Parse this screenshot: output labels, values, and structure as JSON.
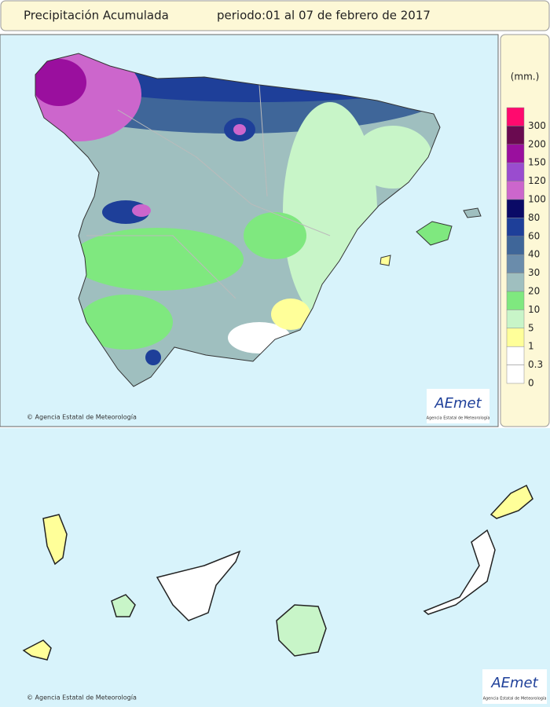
{
  "header": {
    "title": "Precipitación Acumulada",
    "period": "periodo:01 al 07 de febrero de 2017"
  },
  "legend": {
    "unit": "(mm.)",
    "items": [
      {
        "label": "300",
        "color": "#ff0a6e"
      },
      {
        "label": "200",
        "color": "#6a0a50"
      },
      {
        "label": "150",
        "color": "#9a0f9e"
      },
      {
        "label": "120",
        "color": "#9a4ccf"
      },
      {
        "label": "100",
        "color": "#cc66cc"
      },
      {
        "label": "80",
        "color": "#0a0a66"
      },
      {
        "label": "60",
        "color": "#1e3f99"
      },
      {
        "label": "40",
        "color": "#3f6699"
      },
      {
        "label": "30",
        "color": "#6a8cab"
      },
      {
        "label": "20",
        "color": "#9fbfbf"
      },
      {
        "label": "10",
        "color": "#7fe87f"
      },
      {
        "label": "5",
        "color": "#c8f5c8"
      },
      {
        "label": "1",
        "color": "#ffff99"
      },
      {
        "label": "0.3",
        "color": "#ffffff"
      },
      {
        "label": "0",
        "color": "#ffffff"
      }
    ]
  },
  "credits": {
    "peninsula": "© Agencia Estatal de Meteorología",
    "canarias": "© Agencia Estatal de Meteorología"
  },
  "logos": {
    "peninsula": {
      "name": "AEmet",
      "caption": "Agencia Estatal de Meteorología"
    },
    "canarias": {
      "name": "AEmet",
      "caption": "Agencia Estatal de Meteorología"
    }
  }
}
